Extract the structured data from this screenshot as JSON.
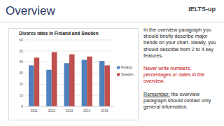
{
  "header": {
    "title": "Overview",
    "logo": "IELTS-up"
  },
  "chart_data": {
    "type": "bar",
    "title": "Divorce rates in Finland and Sweden",
    "categories": [
      "2011",
      "2012",
      "2013",
      "2014",
      "2015"
    ],
    "series": [
      {
        "name": "Finland",
        "color": "#4f81bd",
        "values": [
          37,
          33,
          39,
          42,
          41
        ]
      },
      {
        "name": "Sweden",
        "color": "#c0504d",
        "values": [
          44,
          49,
          47,
          45,
          37
        ]
      }
    ],
    "ylim": [
      0,
      60
    ],
    "yticks": [
      0,
      10,
      20,
      30,
      40,
      50,
      60
    ],
    "grid": true,
    "legend": "right"
  },
  "text": {
    "paragraph": "In the overview paragraph you should briefly describe major trends on your chart. Ideally, you should describe from 2 to 4 key features.",
    "warning": "Never write numbers, percentages or dates in the overview.",
    "remember_label": "Remember:",
    "remember_text": "the overview paragraph should contain only general information."
  }
}
